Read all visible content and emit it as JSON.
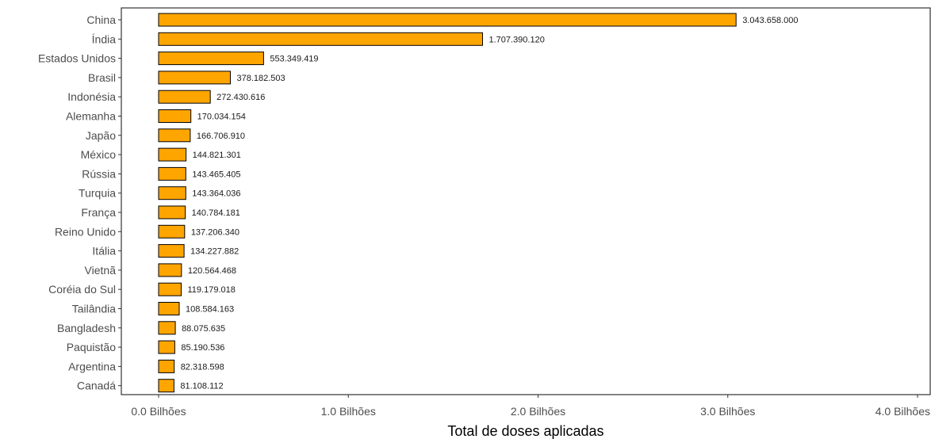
{
  "chart_data": {
    "type": "bar",
    "orientation": "horizontal",
    "title": "",
    "xlabel": "Total de doses aplicadas",
    "ylabel": "",
    "xlim": [
      0,
      4000000000
    ],
    "x_ticks": [
      0,
      1000000000,
      2000000000,
      3000000000,
      4000000000
    ],
    "x_tick_labels": [
      "0.0 Bilhões",
      "1.0 Bilhões",
      "2.0 Bilhões",
      "3.0 Bilhões",
      "4.0 Bilhões"
    ],
    "grid": false,
    "legend": "none",
    "bar_color": "#FFA500",
    "bar_edge_color": "#000000",
    "categories": [
      "China",
      "Índia",
      "Estados Unidos",
      "Brasil",
      "Indonésia",
      "Alemanha",
      "Japão",
      "México",
      "Rússia",
      "Turquia",
      "França",
      "Reino Unido",
      "Itália",
      "Vietnã",
      "Coréia do Sul",
      "Tailândia",
      "Bangladesh",
      "Paquistão",
      "Argentina",
      "Canadá"
    ],
    "values": [
      3043658000,
      1707390120,
      553349419,
      378182503,
      272430616,
      170034154,
      166706910,
      144821301,
      143465405,
      143364036,
      140784181,
      137206340,
      134227882,
      120564468,
      119179018,
      108584163,
      88075635,
      85190536,
      82318598,
      81108112
    ],
    "value_labels": [
      "3.043.658.000",
      "1.707.390.120",
      "553.349.419",
      "378.182.503",
      "272.430.616",
      "170.034.154",
      "166.706.910",
      "144.821.301",
      "143.465.405",
      "143.364.036",
      "140.784.181",
      "137.206.340",
      "134.227.882",
      "120.564.468",
      "119.179.018",
      "108.584.163",
      "88.075.635",
      "85.190.536",
      "82.318.598",
      "81.108.112"
    ]
  }
}
